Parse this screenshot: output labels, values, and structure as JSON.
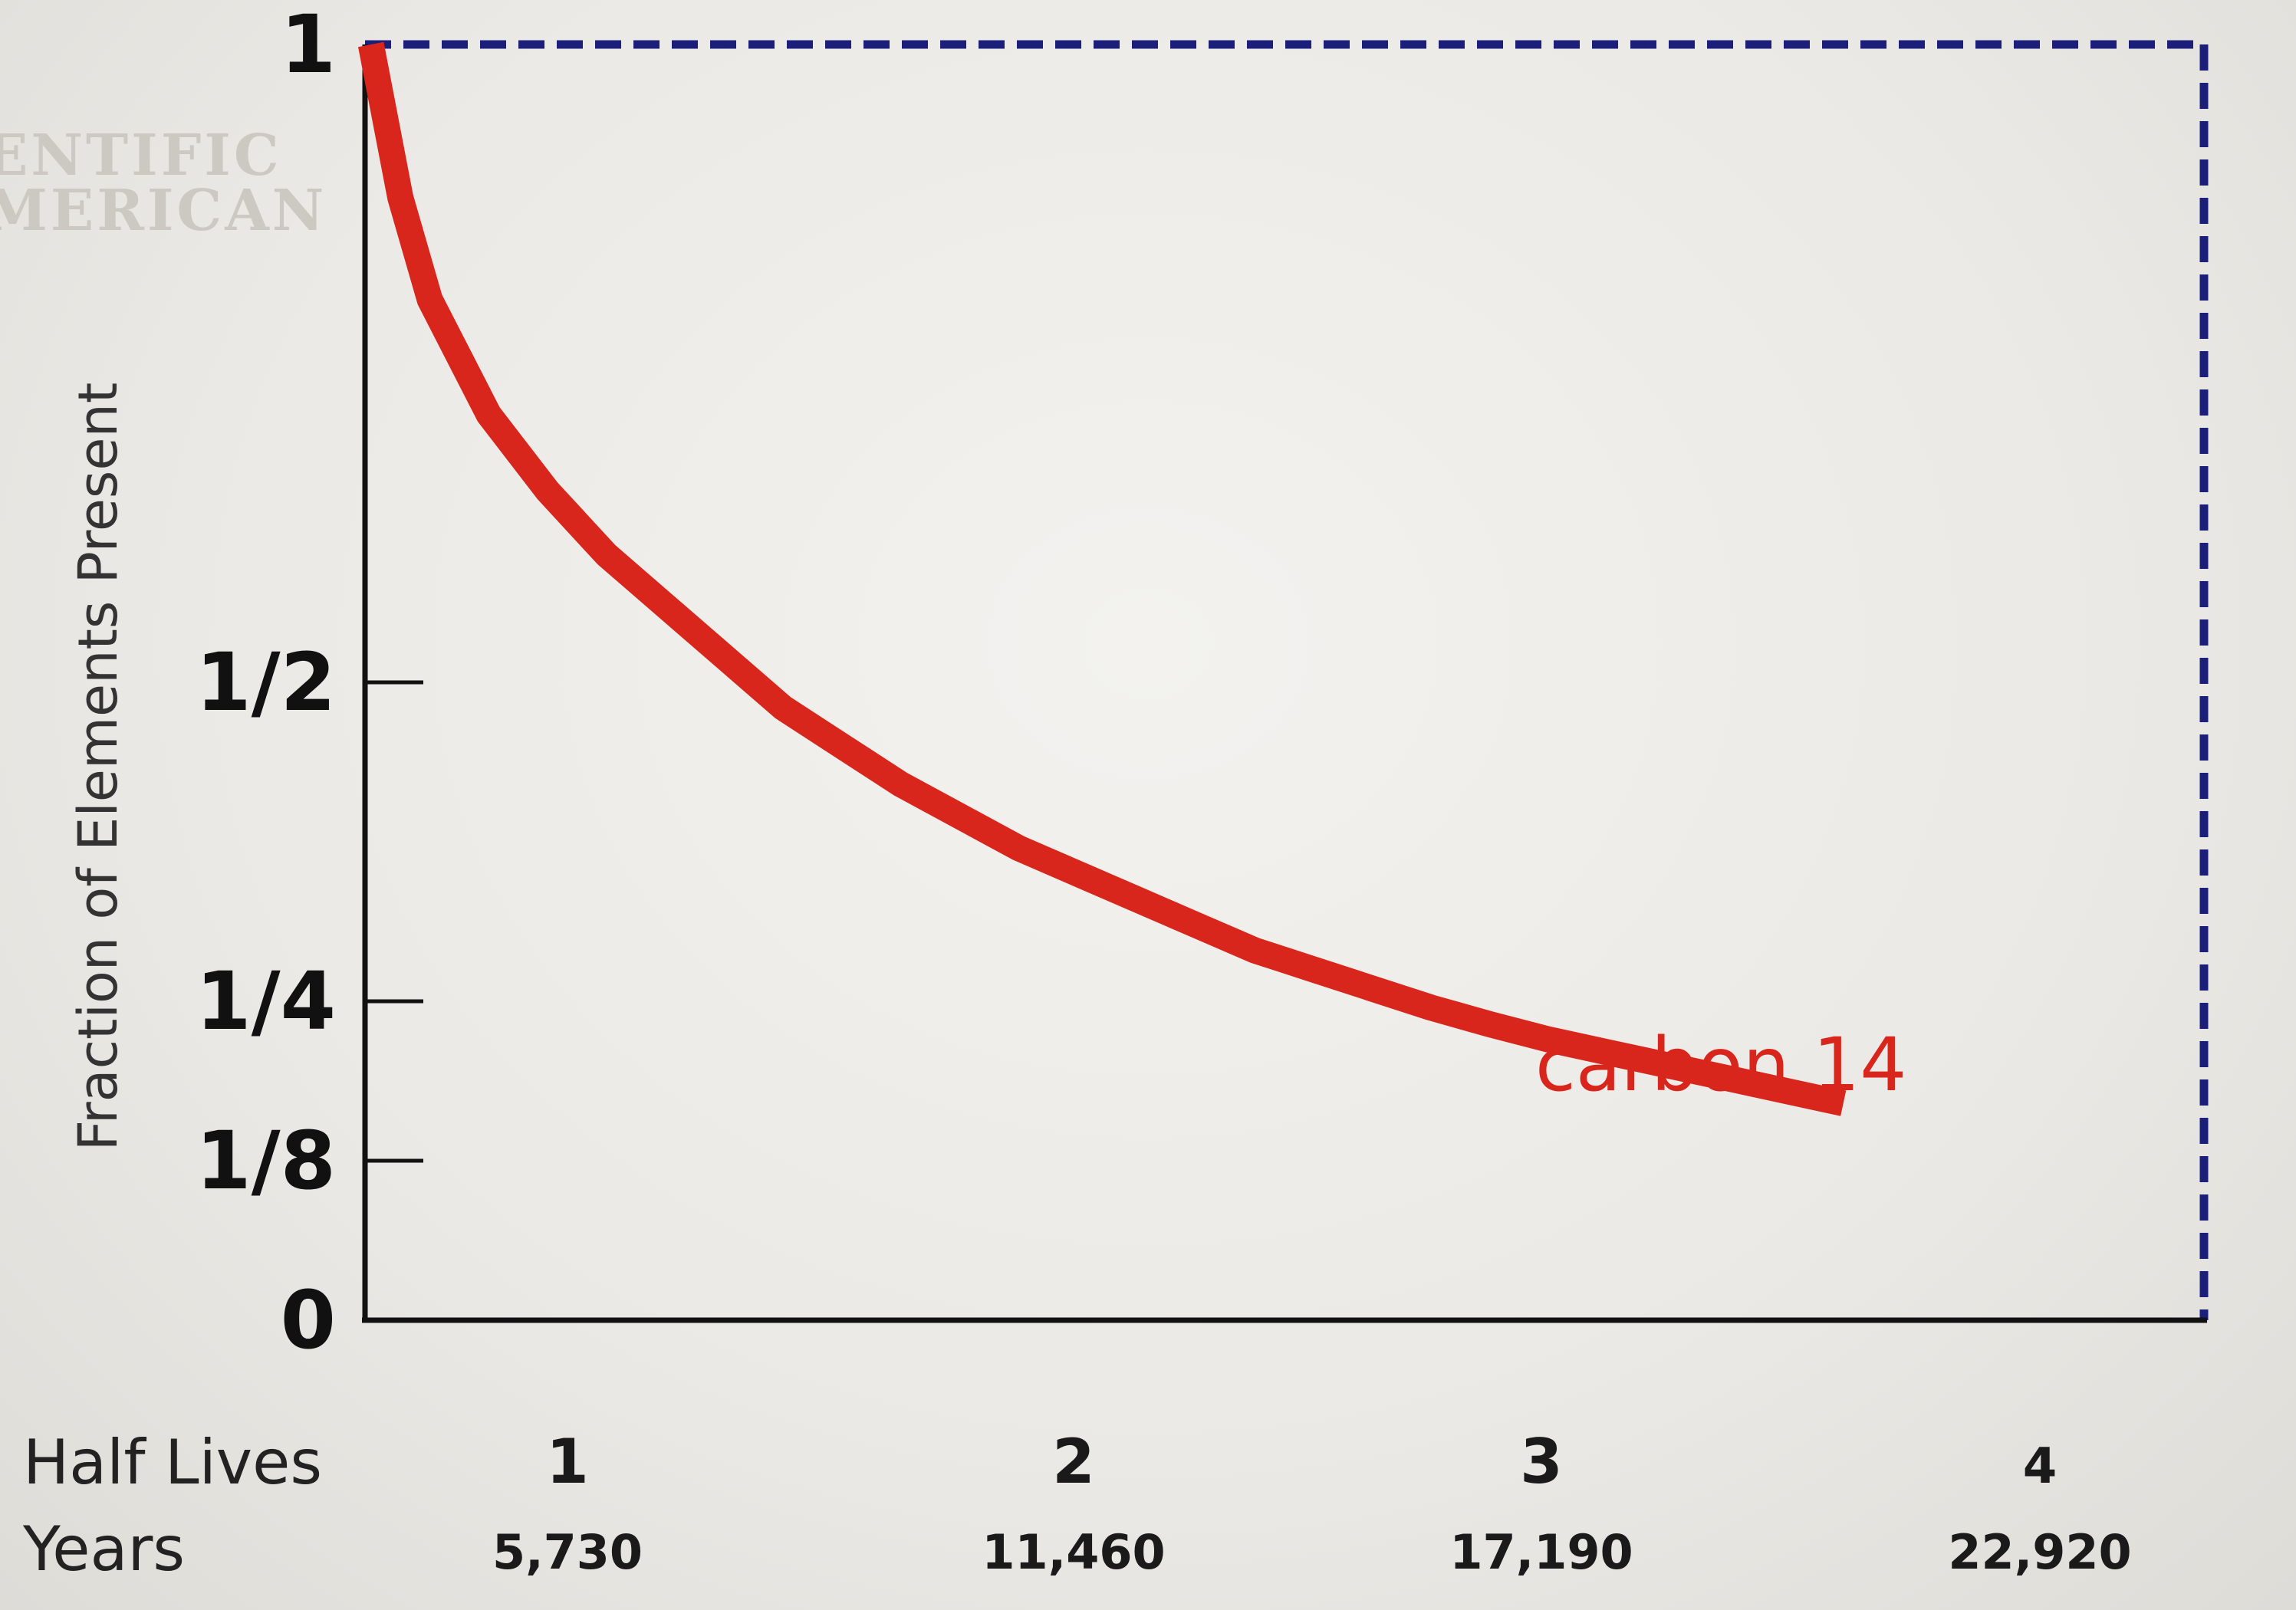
{
  "watermark": {
    "line1": "ENTIFIC",
    "line2": "MERICAN"
  },
  "colors": {
    "curve": "#d9261c",
    "frame": "#1b1f7a",
    "axis": "#111111"
  },
  "chart_data": {
    "type": "line",
    "ylabel": "Fraction of Elements Present",
    "y_ticks": [
      {
        "value": 1,
        "label": "1"
      },
      {
        "value": 0.5,
        "label": "1/2"
      },
      {
        "value": 0.25,
        "label": "1/4"
      },
      {
        "value": 0.125,
        "label": "1/8"
      },
      {
        "value": 0,
        "label": "0"
      }
    ],
    "ylim": [
      0,
      1
    ],
    "x_row_labels": {
      "half_lives": "Half Lives",
      "years": "Years"
    },
    "x_ticks": [
      {
        "half_lives": "1",
        "years": "5,730"
      },
      {
        "half_lives": "2",
        "years": "11,460"
      },
      {
        "half_lives": "3",
        "years": "17,190"
      },
      {
        "half_lives": "4",
        "years": "22,920"
      }
    ],
    "series": [
      {
        "name": "carbon 14",
        "x": [
          0,
          0.05,
          0.1,
          0.2,
          0.3,
          0.4,
          0.5,
          0.6,
          0.7,
          0.8,
          0.9,
          1.0,
          1.1,
          1.2,
          1.3,
          1.4,
          1.5,
          1.6,
          1.7,
          1.8,
          1.9,
          2.0,
          2.1,
          2.2,
          2.3,
          2.4,
          2.5
        ],
        "y": [
          1.0,
          0.88,
          0.8,
          0.71,
          0.65,
          0.6,
          0.56,
          0.52,
          0.48,
          0.45,
          0.42,
          0.395,
          0.37,
          0.35,
          0.33,
          0.31,
          0.29,
          0.275,
          0.26,
          0.245,
          0.232,
          0.22,
          0.21,
          0.2,
          0.19,
          0.18,
          0.17
        ]
      }
    ],
    "grid": false
  }
}
